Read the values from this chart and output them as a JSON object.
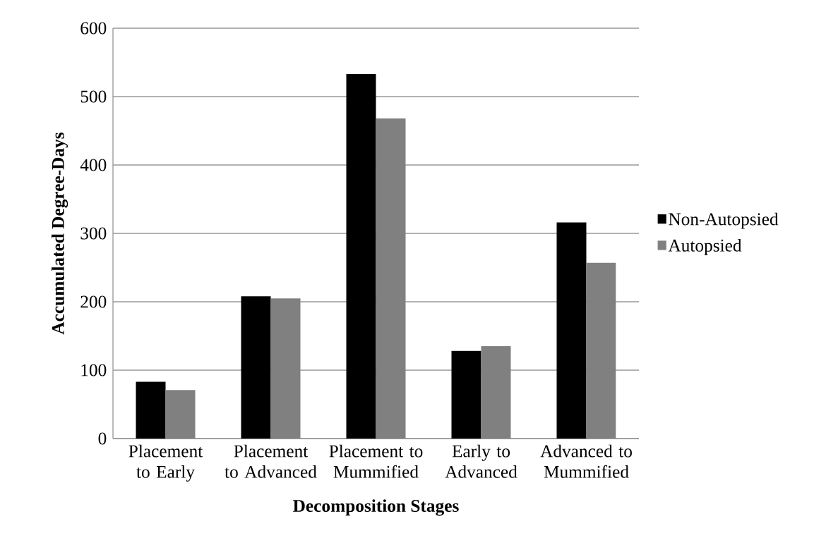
{
  "chart_data": {
    "type": "bar",
    "xlabel": "Decomposition Stages",
    "ylabel": "Accumulated Degree-Days",
    "categories": [
      "Placement to Early",
      "Placement to Advanced",
      "Placement to Mummified",
      "Early to Advanced",
      "Advanced to Mummified"
    ],
    "series": [
      {
        "name": "Non-Autopsied",
        "color": "#000000",
        "values": [
          83,
          208,
          533,
          128,
          316
        ]
      },
      {
        "name": "Autopsied",
        "color": "#808080",
        "values": [
          71,
          205,
          468,
          135,
          257
        ]
      }
    ],
    "ylim": [
      0,
      600
    ],
    "yticks": [
      0,
      100,
      200,
      300,
      400,
      500,
      600
    ],
    "grid": "y",
    "legend": "right"
  }
}
